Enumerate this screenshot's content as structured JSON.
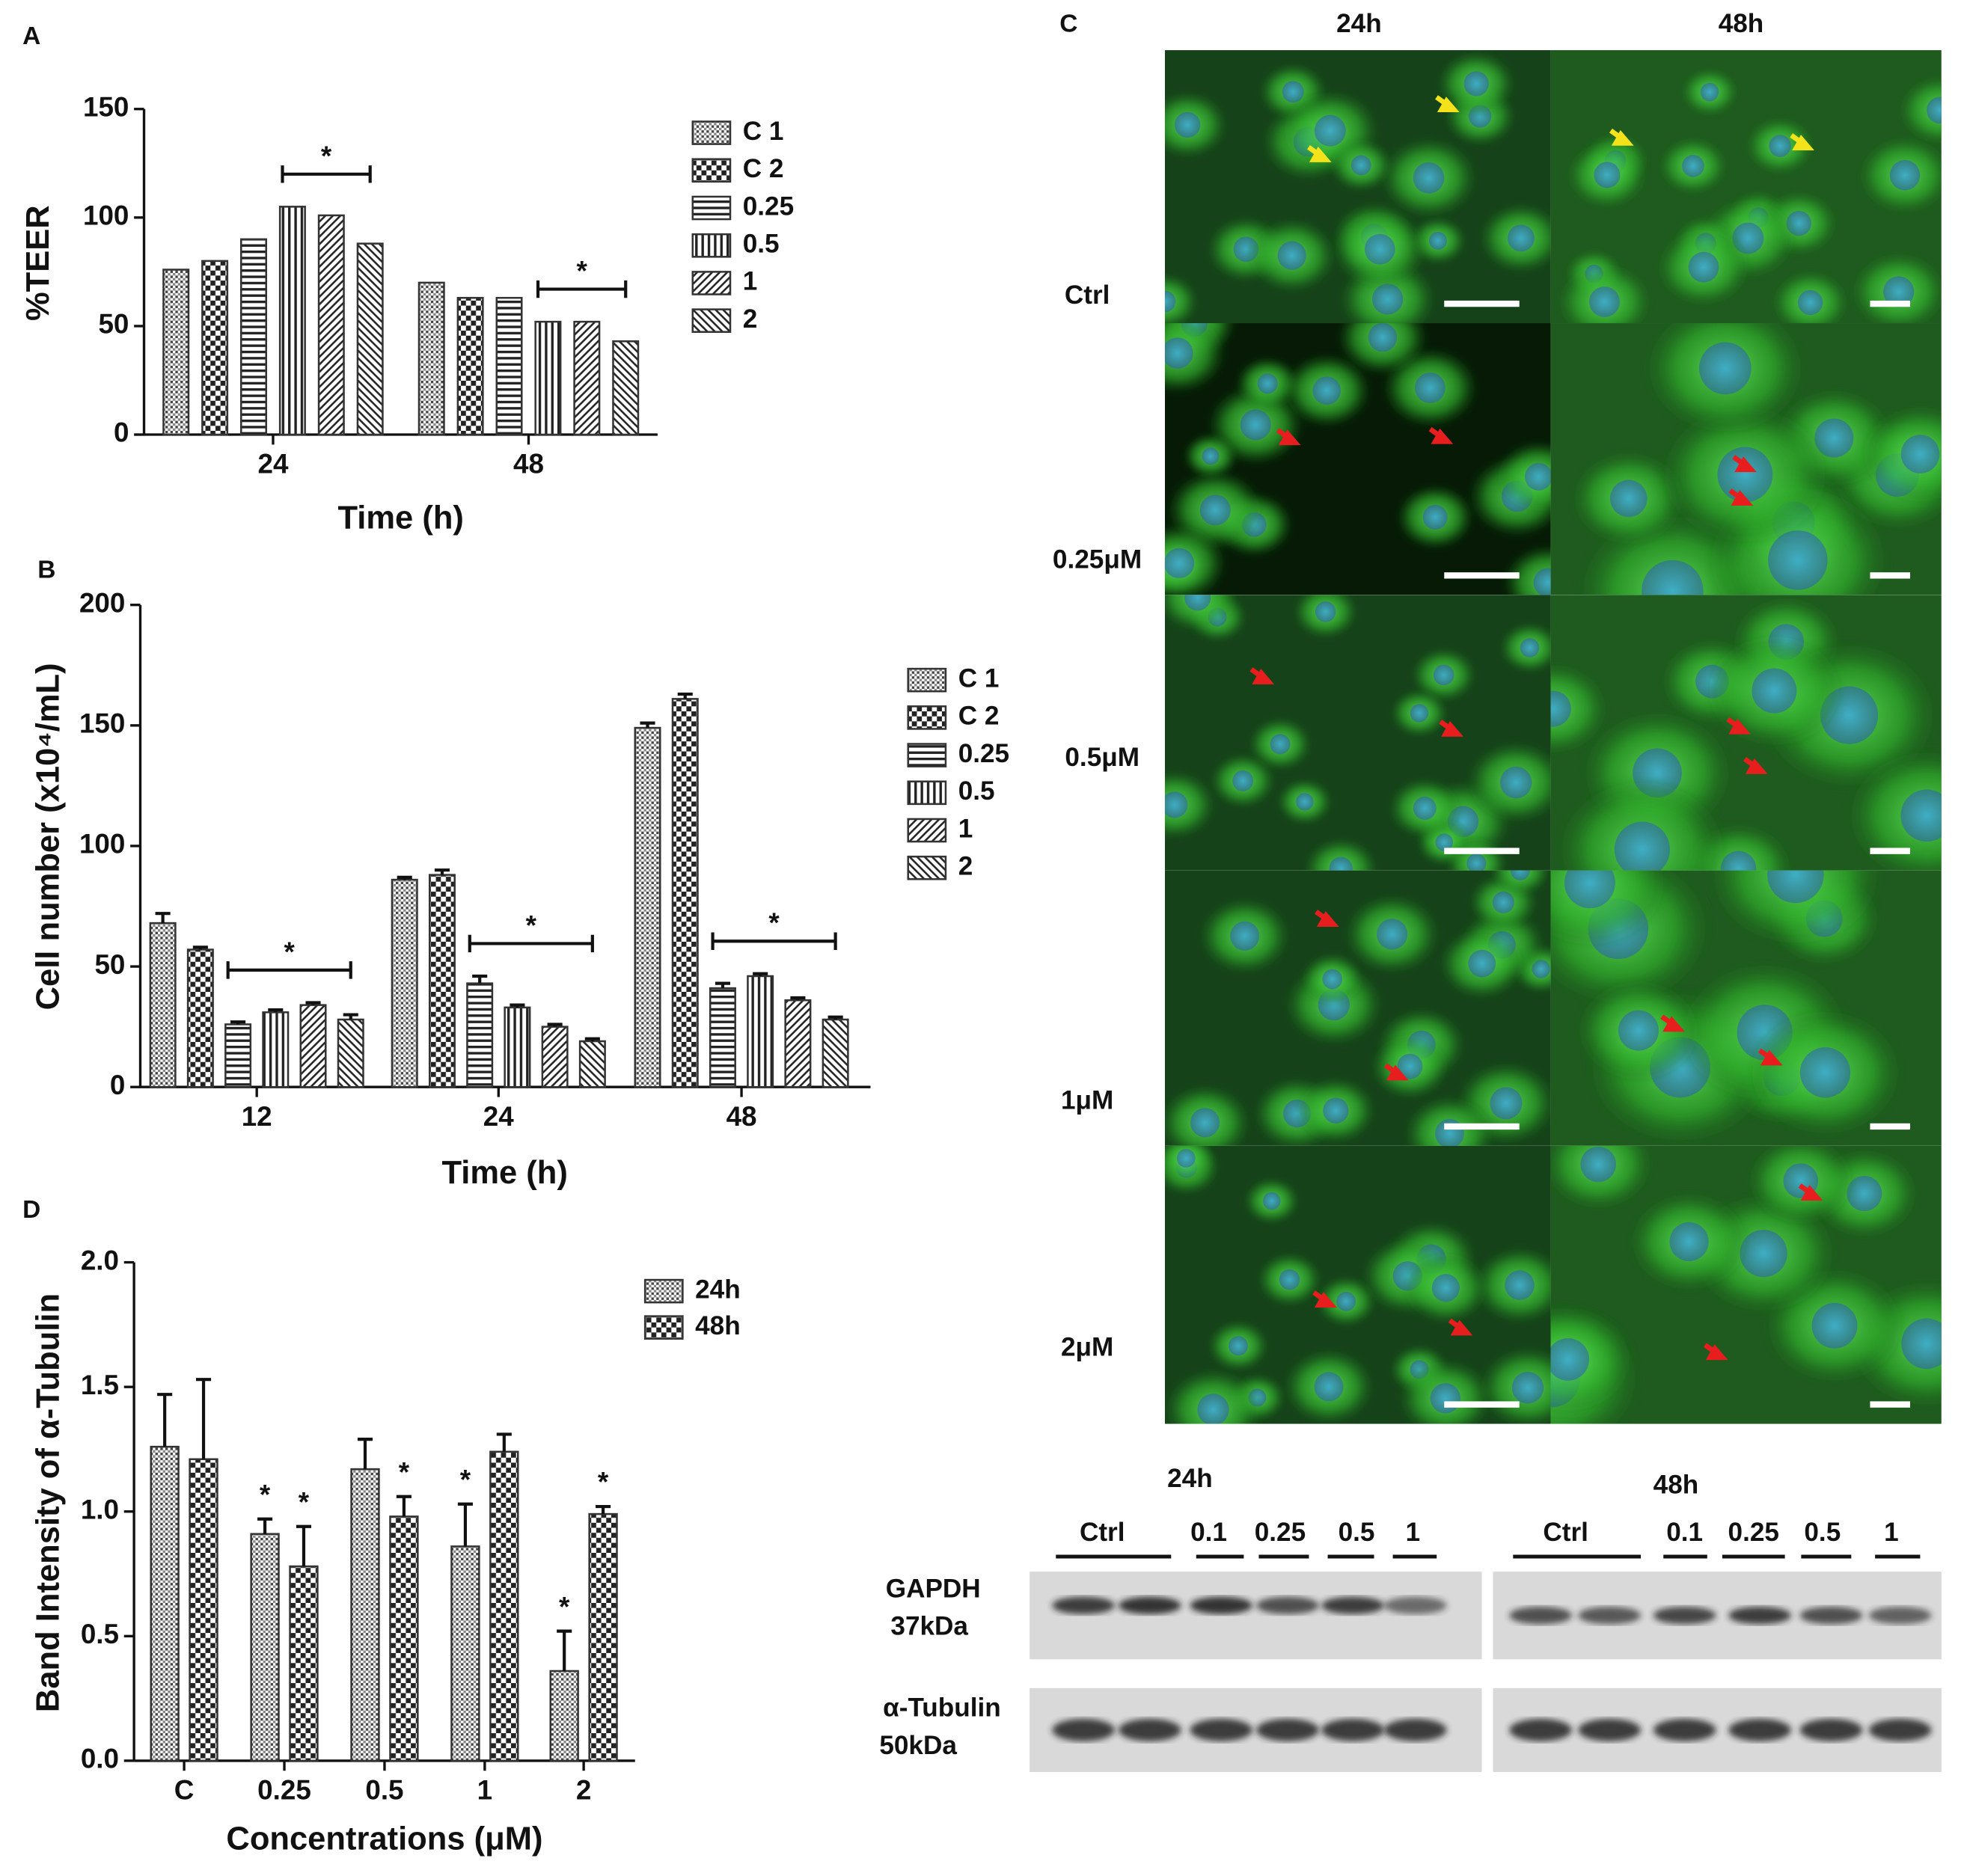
{
  "chart_data": [
    {
      "type": "bar",
      "panel": "A",
      "ylabel": "%TEER",
      "xlabel": "Time (h)",
      "categories": [
        "24",
        "48"
      ],
      "series": [
        {
          "name": "C 1",
          "pattern": "dots",
          "color": "#333",
          "values": [
            76,
            70
          ]
        },
        {
          "name": "C 2",
          "pattern": "checker",
          "color": "#333",
          "values": [
            80,
            63
          ]
        },
        {
          "name": "0.25",
          "pattern": "hlines",
          "color": "#333",
          "values": [
            90,
            63
          ]
        },
        {
          "name": "0.5",
          "pattern": "vlines",
          "color": "#333",
          "values": [
            105,
            52
          ]
        },
        {
          "name": "1",
          "pattern": "diag",
          "color": "#333",
          "values": [
            101,
            52
          ]
        },
        {
          "name": "2",
          "pattern": "diag2",
          "color": "#333",
          "values": [
            88,
            43
          ]
        }
      ],
      "ylim": [
        0,
        150
      ],
      "yticks": [
        0,
        50,
        100,
        150
      ],
      "annotations": [
        "*",
        "*"
      ]
    },
    {
      "type": "bar",
      "panel": "B",
      "ylabel": "Cell number (x10⁴/mL)",
      "xlabel": "Time (h)",
      "categories": [
        "12",
        "24",
        "48"
      ],
      "series": [
        {
          "name": "C 1",
          "pattern": "dots",
          "color": "#333",
          "values": [
            68,
            86,
            149
          ],
          "errors": [
            4,
            1,
            2
          ]
        },
        {
          "name": "C 2",
          "pattern": "checker",
          "color": "#333",
          "values": [
            57,
            88,
            161
          ],
          "errors": [
            1,
            2,
            2
          ]
        },
        {
          "name": "0.25",
          "pattern": "hlines",
          "color": "#333",
          "values": [
            26,
            43,
            41
          ],
          "errors": [
            1,
            3,
            2
          ]
        },
        {
          "name": "0.5",
          "pattern": "vlines",
          "color": "#333",
          "values": [
            31,
            33,
            46
          ],
          "errors": [
            1,
            1,
            1
          ]
        },
        {
          "name": "1",
          "pattern": "diag",
          "color": "#333",
          "values": [
            34,
            25,
            36
          ],
          "errors": [
            1,
            1,
            1
          ]
        },
        {
          "name": "2",
          "pattern": "diag2",
          "color": "#333",
          "values": [
            28,
            19,
            28
          ],
          "errors": [
            2,
            1,
            1
          ]
        }
      ],
      "ylim": [
        0,
        200
      ],
      "yticks": [
        0,
        50,
        100,
        150,
        200
      ],
      "annotations": [
        "*",
        "*",
        "*"
      ]
    },
    {
      "type": "bar",
      "panel": "D",
      "ylabel": "Band Intensity of α-Tubulin",
      "xlabel": "Concentrations (μM)",
      "categories": [
        "C",
        "0.25",
        "0.5",
        "1",
        "2"
      ],
      "series": [
        {
          "name": "24h",
          "pattern": "dots",
          "color": "#333",
          "values": [
            1.26,
            0.91,
            1.17,
            0.86,
            0.36
          ],
          "errors": [
            0.21,
            0.06,
            0.12,
            0.17,
            0.16
          ]
        },
        {
          "name": "48h",
          "pattern": "checker",
          "color": "#333",
          "values": [
            1.21,
            0.78,
            0.98,
            1.24,
            0.99
          ],
          "errors": [
            0.32,
            0.16,
            0.08,
            0.07,
            0.03
          ]
        }
      ],
      "ylim": [
        0,
        2
      ],
      "yticks": [
        {
          "value": 0,
          "label": "0.0"
        },
        {
          "value": 0.5,
          "label": "0.5"
        },
        {
          "value": 1,
          "label": "1.0"
        },
        {
          "value": 1.5,
          "label": "1.5"
        },
        {
          "value": 2,
          "label": "2.0"
        }
      ],
      "annotations": [
        "*",
        "*",
        "*",
        "*",
        "*",
        "*"
      ]
    }
  ],
  "microscopy": {
    "panel": "C",
    "columns": [
      "24h",
      "48h"
    ],
    "rows": [
      "Ctrl",
      "0.25μM",
      "0.5μM",
      "1μM",
      "2μM"
    ]
  },
  "western_blot": {
    "time_points": [
      "24h",
      "48h"
    ],
    "lanes": [
      [
        "Ctrl",
        "0.1",
        "0.25",
        "0.5",
        "1"
      ],
      [
        "Ctrl",
        "0.1",
        "0.25",
        "0.5",
        "1"
      ]
    ],
    "rows": [
      {
        "protein": "GAPDH",
        "size": "37kDa"
      },
      {
        "protein": "α-Tubulin",
        "size": "50kDa"
      }
    ]
  }
}
